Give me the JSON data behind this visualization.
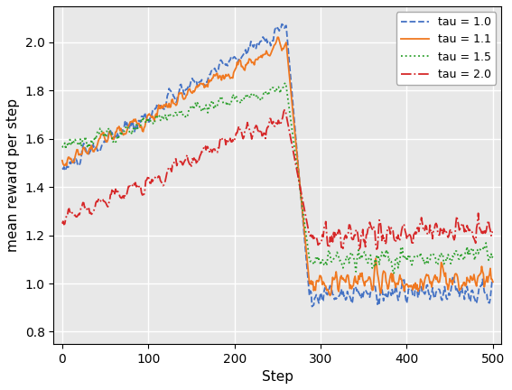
{
  "title": "",
  "xlabel": "Step",
  "ylabel": "mean reward per step",
  "xlim": [
    -10,
    510
  ],
  "ylim": [
    0.75,
    2.15
  ],
  "xticks": [
    0,
    100,
    200,
    300,
    400,
    500
  ],
  "yticks": [
    0.8,
    1.0,
    1.2,
    1.4,
    1.6,
    1.8,
    2.0
  ],
  "background_color": "#e8e8e8",
  "grid_color": "white",
  "tau_labels": [
    "tau = 1.0",
    "tau = 1.1",
    "tau = 1.5",
    "tau = 2.0"
  ],
  "tau_colors": [
    "#4472c4",
    "#f07820",
    "#2ca02c",
    "#d62728"
  ],
  "tau_linestyles": [
    "--",
    "-",
    ":",
    "-."
  ],
  "n_steps": 501,
  "change_point": 260
}
